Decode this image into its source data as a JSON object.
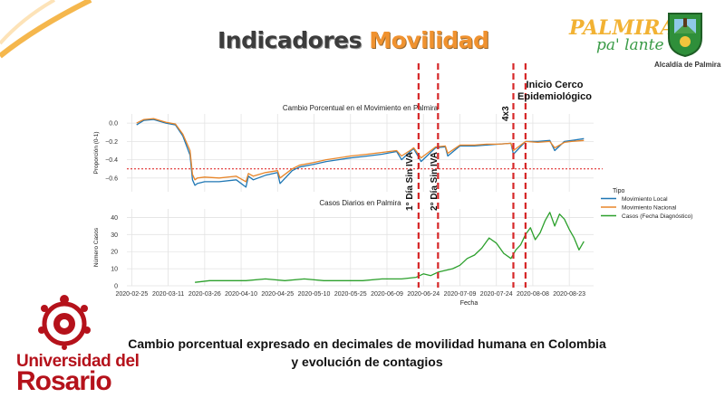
{
  "header": {
    "title_part1": "Indicadores",
    "title_part2": "Movilidad",
    "title_part1_color": "#3c3c3c",
    "title_part2_color": "#f0922f"
  },
  "logos": {
    "palmira_main": "PALMIRA",
    "palmira_sub": "pa' lante",
    "alcaldia": "Alcaldía de Palmira",
    "rosario_line1": "Universidad del",
    "rosario_line2": "Rosario",
    "rosario_color": "#b5121b"
  },
  "caption": {
    "line1": "Cambio porcentual expresado en decimales de movilidad humana en Colombia",
    "line2": "y evolución de contagios"
  },
  "chart_data": [
    {
      "type": "line",
      "title": "Cambio Porcentual en el Movimiento en Palmira",
      "ylabel": "Proporción (0-1)",
      "xlabel": "",
      "ylim": [
        -0.75,
        0.1
      ],
      "yticks": [
        0.0,
        -0.2,
        -0.4,
        -0.6
      ],
      "ytick_labels": [
        "0.0",
        "−0.2",
        "−0.4",
        "−0.6"
      ],
      "grid": true,
      "reference_line": {
        "y": -0.5,
        "color": "#e03030",
        "style": "dotted"
      },
      "series": [
        {
          "name": "Movimiento Local",
          "color": "#1f77b4",
          "x": [
            "2020-02-27",
            "2020-03-01",
            "2020-03-05",
            "2020-03-10",
            "2020-03-14",
            "2020-03-17",
            "2020-03-20",
            "2020-03-21",
            "2020-03-22",
            "2020-03-23",
            "2020-03-26",
            "2020-04-01",
            "2020-04-08",
            "2020-04-12",
            "2020-04-13",
            "2020-04-15",
            "2020-04-20",
            "2020-04-25",
            "2020-04-26",
            "2020-05-01",
            "2020-05-04",
            "2020-05-10",
            "2020-05-15",
            "2020-05-20",
            "2020-05-25",
            "2020-06-01",
            "2020-06-07",
            "2020-06-13",
            "2020-06-15",
            "2020-06-19",
            "2020-06-20",
            "2020-06-23",
            "2020-06-29",
            "2020-07-03",
            "2020-07-04",
            "2020-07-09",
            "2020-07-15",
            "2020-07-20",
            "2020-07-25",
            "2020-07-30",
            "2020-07-31",
            "2020-08-05",
            "2020-08-10",
            "2020-08-15",
            "2020-08-17",
            "2020-08-21",
            "2020-08-24",
            "2020-08-29"
          ],
          "values": [
            -0.02,
            0.03,
            0.04,
            0.0,
            -0.02,
            -0.14,
            -0.35,
            -0.62,
            -0.68,
            -0.66,
            -0.64,
            -0.64,
            -0.62,
            -0.7,
            -0.58,
            -0.62,
            -0.57,
            -0.54,
            -0.66,
            -0.52,
            -0.48,
            -0.45,
            -0.42,
            -0.4,
            -0.38,
            -0.36,
            -0.34,
            -0.31,
            -0.4,
            -0.3,
            -0.28,
            -0.42,
            -0.27,
            -0.26,
            -0.36,
            -0.25,
            -0.25,
            -0.24,
            -0.23,
            -0.22,
            -0.34,
            -0.2,
            -0.2,
            -0.19,
            -0.3,
            -0.2,
            -0.19,
            -0.17
          ]
        },
        {
          "name": "Movimiento Nacional",
          "color": "#e8862a",
          "x": [
            "2020-02-27",
            "2020-03-01",
            "2020-03-05",
            "2020-03-10",
            "2020-03-14",
            "2020-03-17",
            "2020-03-20",
            "2020-03-21",
            "2020-03-22",
            "2020-03-23",
            "2020-03-26",
            "2020-04-01",
            "2020-04-08",
            "2020-04-12",
            "2020-04-13",
            "2020-04-15",
            "2020-04-20",
            "2020-04-25",
            "2020-04-26",
            "2020-05-01",
            "2020-05-04",
            "2020-05-10",
            "2020-05-15",
            "2020-05-20",
            "2020-05-25",
            "2020-06-01",
            "2020-06-07",
            "2020-06-13",
            "2020-06-15",
            "2020-06-19",
            "2020-06-20",
            "2020-06-23",
            "2020-06-29",
            "2020-07-03",
            "2020-07-04",
            "2020-07-09",
            "2020-07-15",
            "2020-07-20",
            "2020-07-25",
            "2020-07-30",
            "2020-07-31",
            "2020-08-05",
            "2020-08-10",
            "2020-08-15",
            "2020-08-17",
            "2020-08-21",
            "2020-08-24",
            "2020-08-29"
          ],
          "values": [
            0.0,
            0.04,
            0.05,
            0.01,
            -0.01,
            -0.12,
            -0.3,
            -0.56,
            -0.62,
            -0.6,
            -0.59,
            -0.6,
            -0.58,
            -0.64,
            -0.55,
            -0.58,
            -0.54,
            -0.52,
            -0.6,
            -0.5,
            -0.46,
            -0.43,
            -0.4,
            -0.38,
            -0.36,
            -0.34,
            -0.32,
            -0.3,
            -0.36,
            -0.29,
            -0.27,
            -0.38,
            -0.26,
            -0.25,
            -0.33,
            -0.24,
            -0.24,
            -0.23,
            -0.23,
            -0.22,
            -0.3,
            -0.2,
            -0.21,
            -0.2,
            -0.27,
            -0.21,
            -0.2,
            -0.19
          ]
        }
      ]
    },
    {
      "type": "line",
      "title": "Casos Diarios en Palmira",
      "ylabel": "Número Casos",
      "xlabel": "Fecha",
      "ylim": [
        0,
        45
      ],
      "yticks": [
        0,
        10,
        20,
        30,
        40
      ],
      "ytick_labels": [
        "0",
        "10",
        "20",
        "30",
        "40"
      ],
      "grid": true,
      "series": [
        {
          "name": "Casos (Fecha Diagnóstico)",
          "color": "#2ca02c",
          "x": [
            "2020-03-22",
            "2020-03-28",
            "2020-04-05",
            "2020-04-12",
            "2020-04-20",
            "2020-04-28",
            "2020-05-06",
            "2020-05-14",
            "2020-05-22",
            "2020-05-30",
            "2020-06-07",
            "2020-06-15",
            "2020-06-21",
            "2020-06-24",
            "2020-06-27",
            "2020-06-30",
            "2020-07-03",
            "2020-07-06",
            "2020-07-09",
            "2020-07-12",
            "2020-07-15",
            "2020-07-18",
            "2020-07-21",
            "2020-07-24",
            "2020-07-27",
            "2020-07-30",
            "2020-08-01",
            "2020-08-03",
            "2020-08-05",
            "2020-08-07",
            "2020-08-09",
            "2020-08-11",
            "2020-08-13",
            "2020-08-15",
            "2020-08-17",
            "2020-08-19",
            "2020-08-21",
            "2020-08-23",
            "2020-08-25",
            "2020-08-27",
            "2020-08-29"
          ],
          "values": [
            2,
            3,
            3,
            3,
            4,
            3,
            4,
            3,
            3,
            3,
            4,
            4,
            5,
            7,
            6,
            8,
            9,
            10,
            12,
            16,
            18,
            22,
            28,
            25,
            19,
            16,
            21,
            24,
            30,
            34,
            27,
            31,
            38,
            43,
            35,
            42,
            39,
            33,
            28,
            21,
            26
          ]
        }
      ]
    }
  ],
  "x_axis": {
    "start": "2020-02-23",
    "end": "2020-09-02",
    "tick_labels": [
      "2020-02-25",
      "2020-03-11",
      "2020-03-26",
      "2020-04-10",
      "2020-04-25",
      "2020-05-10",
      "2020-05-25",
      "2020-06-09",
      "2020-06-24",
      "2020-07-09",
      "2020-07-24",
      "2020-08-08",
      "2020-08-23"
    ]
  },
  "legend": {
    "title": "Tipo",
    "placement": "right",
    "entries": [
      {
        "name": "Movimiento Local",
        "color": "#1f77b4"
      },
      {
        "name": "Movimiento Nacional",
        "color": "#e8862a"
      },
      {
        "name": "Casos (Fecha Diagnóstico)",
        "color": "#2ca02c"
      }
    ]
  },
  "annotations": [
    {
      "date": "2020-06-22",
      "label": "1° Día Sin IVA",
      "color": "#d62728"
    },
    {
      "date": "2020-06-30",
      "label": "2° Día Sin IVA",
      "color": "#d62728"
    },
    {
      "date": "2020-07-31",
      "label": "4x3",
      "color": "#d62728"
    },
    {
      "date": "2020-08-05",
      "label": "Inicio Cerco Epidemiológico",
      "label_line1": "Inicio Cerco",
      "label_line2": "Epidemiológico",
      "color": "#d62728"
    }
  ]
}
